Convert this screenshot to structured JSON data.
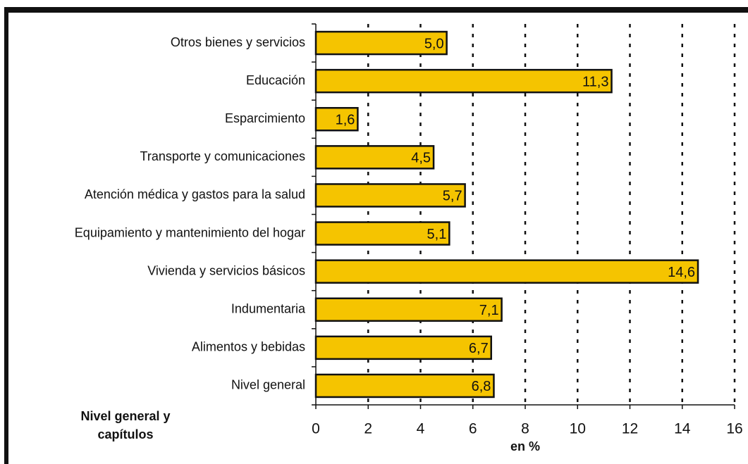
{
  "chart_data": {
    "type": "hbar",
    "categories": [
      "Otros bienes y servicios",
      "Educación",
      "Esparcimiento",
      "Transporte y comunicaciones",
      "Atención médica y gastos para la salud",
      "Equipamiento y mantenimiento del hogar",
      "Vivienda y servicios básicos",
      "Indumentaria",
      "Alimentos y bebidas",
      "Nivel general"
    ],
    "values": [
      5.0,
      11.3,
      1.6,
      4.5,
      5.7,
      5.1,
      14.6,
      7.1,
      6.7,
      6.8
    ],
    "value_labels": [
      "5,0",
      "11,3",
      "1,6",
      "4,5",
      "5,7",
      "5,1",
      "14,6",
      "7,1",
      "6,7",
      "6,8"
    ],
    "color": "#f5c400",
    "xlim": [
      0,
      16
    ],
    "xticks": [
      0,
      2,
      4,
      6,
      8,
      10,
      12,
      14,
      16
    ],
    "grid": true,
    "xlabel": "en %",
    "ylabel": [
      "Nivel general y",
      "capítulos"
    ]
  }
}
